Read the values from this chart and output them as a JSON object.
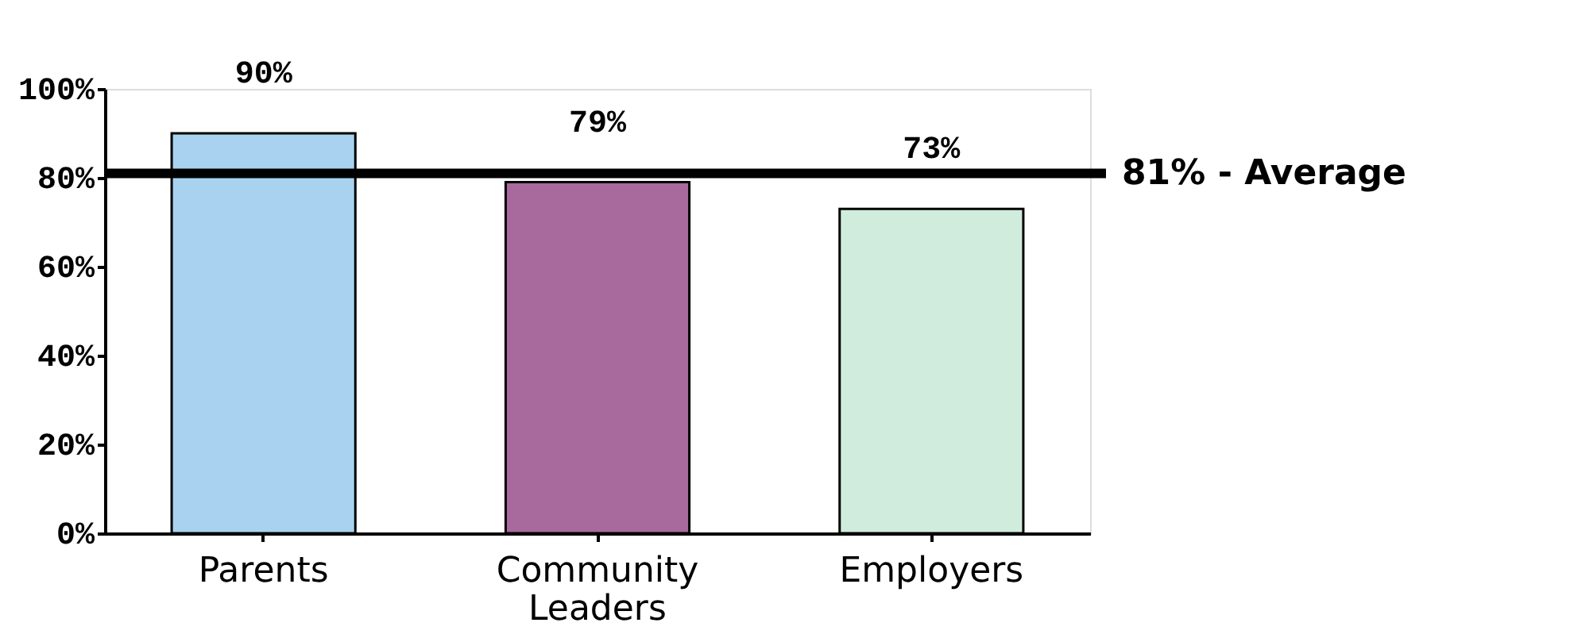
{
  "chart_data": {
    "type": "bar",
    "categories": [
      "Parents",
      "Community Leaders",
      "Employers"
    ],
    "values": [
      90,
      79,
      73
    ],
    "colors": [
      "#a8d2f0",
      "#a86a9c",
      "#d0ecdc"
    ],
    "ylim": [
      0,
      100
    ],
    "yticks": [
      {
        "value": 0,
        "label": "0%"
      },
      {
        "value": 20,
        "label": "20%"
      },
      {
        "value": 40,
        "label": "40%"
      },
      {
        "value": 60,
        "label": "60%"
      },
      {
        "value": 80,
        "label": "80%"
      },
      {
        "value": 100,
        "label": "100%"
      }
    ],
    "value_labels": [
      "90%",
      "79%",
      "73%"
    ],
    "ref_lines": [
      {
        "axis": "y",
        "value": 81,
        "label": "81% - Average",
        "color": "#000000"
      }
    ],
    "grid": false
  }
}
